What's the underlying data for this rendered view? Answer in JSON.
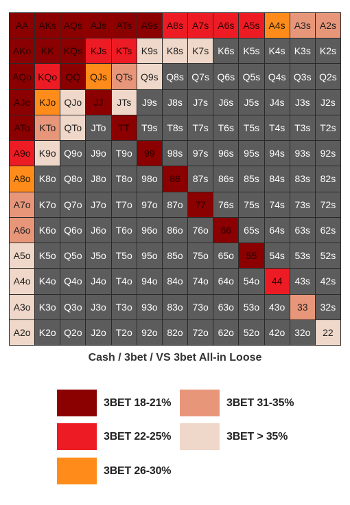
{
  "title": "Cash / 3bet / VS 3bet All-in Loose",
  "colors": {
    "fold": "#5c5c5c",
    "r18": "#8b0000",
    "r22": "#ed1c24",
    "r26": "#ff8c1a",
    "r31": "#e8967a",
    "r35": "#efd8c9"
  },
  "legend": [
    {
      "key": "r18",
      "label": "3BET 18-21%"
    },
    {
      "key": "r22",
      "label": "3BET 22-25%"
    },
    {
      "key": "r26",
      "label": "3BET 26-30%"
    },
    {
      "key": "r31",
      "label": "3BET 31-35%"
    },
    {
      "key": "r35",
      "label": "3BET > 35%"
    }
  ],
  "grid": [
    [
      [
        "AA",
        "r18"
      ],
      [
        "AKs",
        "r18"
      ],
      [
        "AQs",
        "r18"
      ],
      [
        "AJs",
        "r18"
      ],
      [
        "ATs",
        "r18"
      ],
      [
        "A9s",
        "r18"
      ],
      [
        "A8s",
        "r22"
      ],
      [
        "A7s",
        "r22"
      ],
      [
        "A6s",
        "r22"
      ],
      [
        "A5s",
        "r22"
      ],
      [
        "A4s",
        "r26"
      ],
      [
        "A3s",
        "r31"
      ],
      [
        "A2s",
        "r31"
      ]
    ],
    [
      [
        "AKo",
        "r18"
      ],
      [
        "KK",
        "r18"
      ],
      [
        "KQs",
        "r18"
      ],
      [
        "KJs",
        "r22"
      ],
      [
        "KTs",
        "r22"
      ],
      [
        "K9s",
        "r35"
      ],
      [
        "K8s",
        "r35"
      ],
      [
        "K7s",
        "r35"
      ],
      [
        "K6s",
        "fold"
      ],
      [
        "K5s",
        "fold"
      ],
      [
        "K4s",
        "fold"
      ],
      [
        "K3s",
        "fold"
      ],
      [
        "K2s",
        "fold"
      ]
    ],
    [
      [
        "AQo",
        "r18"
      ],
      [
        "KQo",
        "r22"
      ],
      [
        "QQ",
        "r18"
      ],
      [
        "QJs",
        "r26"
      ],
      [
        "QTs",
        "r31"
      ],
      [
        "Q9s",
        "r35"
      ],
      [
        "Q8s",
        "fold"
      ],
      [
        "Q7s",
        "fold"
      ],
      [
        "Q6s",
        "fold"
      ],
      [
        "Q5s",
        "fold"
      ],
      [
        "Q4s",
        "fold"
      ],
      [
        "Q3s",
        "fold"
      ],
      [
        "Q2s",
        "fold"
      ]
    ],
    [
      [
        "AJo",
        "r18"
      ],
      [
        "KJo",
        "r26"
      ],
      [
        "QJo",
        "r35"
      ],
      [
        "JJ",
        "r18"
      ],
      [
        "JTs",
        "r35"
      ],
      [
        "J9s",
        "fold"
      ],
      [
        "J8s",
        "fold"
      ],
      [
        "J7s",
        "fold"
      ],
      [
        "J6s",
        "fold"
      ],
      [
        "J5s",
        "fold"
      ],
      [
        "J4s",
        "fold"
      ],
      [
        "J3s",
        "fold"
      ],
      [
        "J2s",
        "fold"
      ]
    ],
    [
      [
        "ATo",
        "r18"
      ],
      [
        "KTo",
        "r31"
      ],
      [
        "QTo",
        "r35"
      ],
      [
        "JTo",
        "fold"
      ],
      [
        "TT",
        "r18"
      ],
      [
        "T9s",
        "fold"
      ],
      [
        "T8s",
        "fold"
      ],
      [
        "T7s",
        "fold"
      ],
      [
        "T6s",
        "fold"
      ],
      [
        "T5s",
        "fold"
      ],
      [
        "T4s",
        "fold"
      ],
      [
        "T3s",
        "fold"
      ],
      [
        "T2s",
        "fold"
      ]
    ],
    [
      [
        "A9o",
        "r22"
      ],
      [
        "K9o",
        "r35"
      ],
      [
        "Q9o",
        "fold"
      ],
      [
        "J9o",
        "fold"
      ],
      [
        "T9o",
        "fold"
      ],
      [
        "99",
        "r18"
      ],
      [
        "98s",
        "fold"
      ],
      [
        "97s",
        "fold"
      ],
      [
        "96s",
        "fold"
      ],
      [
        "95s",
        "fold"
      ],
      [
        "94s",
        "fold"
      ],
      [
        "93s",
        "fold"
      ],
      [
        "92s",
        "fold"
      ]
    ],
    [
      [
        "A8o",
        "r26"
      ],
      [
        "K8o",
        "fold"
      ],
      [
        "Q8o",
        "fold"
      ],
      [
        "J8o",
        "fold"
      ],
      [
        "T8o",
        "fold"
      ],
      [
        "98o",
        "fold"
      ],
      [
        "88",
        "r18"
      ],
      [
        "87s",
        "fold"
      ],
      [
        "86s",
        "fold"
      ],
      [
        "85s",
        "fold"
      ],
      [
        "84s",
        "fold"
      ],
      [
        "83s",
        "fold"
      ],
      [
        "82s",
        "fold"
      ]
    ],
    [
      [
        "A7o",
        "r31"
      ],
      [
        "K7o",
        "fold"
      ],
      [
        "Q7o",
        "fold"
      ],
      [
        "J7o",
        "fold"
      ],
      [
        "T7o",
        "fold"
      ],
      [
        "97o",
        "fold"
      ],
      [
        "87o",
        "fold"
      ],
      [
        "77",
        "r18"
      ],
      [
        "76s",
        "fold"
      ],
      [
        "75s",
        "fold"
      ],
      [
        "74s",
        "fold"
      ],
      [
        "73s",
        "fold"
      ],
      [
        "72s",
        "fold"
      ]
    ],
    [
      [
        "A6o",
        "r31"
      ],
      [
        "K6o",
        "fold"
      ],
      [
        "Q6o",
        "fold"
      ],
      [
        "J6o",
        "fold"
      ],
      [
        "T6o",
        "fold"
      ],
      [
        "96o",
        "fold"
      ],
      [
        "86o",
        "fold"
      ],
      [
        "76o",
        "fold"
      ],
      [
        "66",
        "r18"
      ],
      [
        "65s",
        "fold"
      ],
      [
        "64s",
        "fold"
      ],
      [
        "63s",
        "fold"
      ],
      [
        "62s",
        "fold"
      ]
    ],
    [
      [
        "A5o",
        "r35"
      ],
      [
        "K5o",
        "fold"
      ],
      [
        "Q5o",
        "fold"
      ],
      [
        "J5o",
        "fold"
      ],
      [
        "T5o",
        "fold"
      ],
      [
        "95o",
        "fold"
      ],
      [
        "85o",
        "fold"
      ],
      [
        "75o",
        "fold"
      ],
      [
        "65o",
        "fold"
      ],
      [
        "55",
        "r18"
      ],
      [
        "54s",
        "fold"
      ],
      [
        "53s",
        "fold"
      ],
      [
        "52s",
        "fold"
      ]
    ],
    [
      [
        "A4o",
        "r35"
      ],
      [
        "K4o",
        "fold"
      ],
      [
        "Q4o",
        "fold"
      ],
      [
        "J4o",
        "fold"
      ],
      [
        "T4o",
        "fold"
      ],
      [
        "94o",
        "fold"
      ],
      [
        "84o",
        "fold"
      ],
      [
        "74o",
        "fold"
      ],
      [
        "64o",
        "fold"
      ],
      [
        "54o",
        "fold"
      ],
      [
        "44",
        "r22"
      ],
      [
        "43s",
        "fold"
      ],
      [
        "42s",
        "fold"
      ]
    ],
    [
      [
        "A3o",
        "r35"
      ],
      [
        "K3o",
        "fold"
      ],
      [
        "Q3o",
        "fold"
      ],
      [
        "J3o",
        "fold"
      ],
      [
        "T3o",
        "fold"
      ],
      [
        "93o",
        "fold"
      ],
      [
        "83o",
        "fold"
      ],
      [
        "73o",
        "fold"
      ],
      [
        "63o",
        "fold"
      ],
      [
        "53o",
        "fold"
      ],
      [
        "43o",
        "fold"
      ],
      [
        "33",
        "r31"
      ],
      [
        "32s",
        "fold"
      ]
    ],
    [
      [
        "A2o",
        "r35"
      ],
      [
        "K2o",
        "fold"
      ],
      [
        "Q2o",
        "fold"
      ],
      [
        "J2o",
        "fold"
      ],
      [
        "T2o",
        "fold"
      ],
      [
        "92o",
        "fold"
      ],
      [
        "82o",
        "fold"
      ],
      [
        "72o",
        "fold"
      ],
      [
        "62o",
        "fold"
      ],
      [
        "52o",
        "fold"
      ],
      [
        "42o",
        "fold"
      ],
      [
        "32o",
        "fold"
      ],
      [
        "22",
        "r35"
      ]
    ]
  ]
}
